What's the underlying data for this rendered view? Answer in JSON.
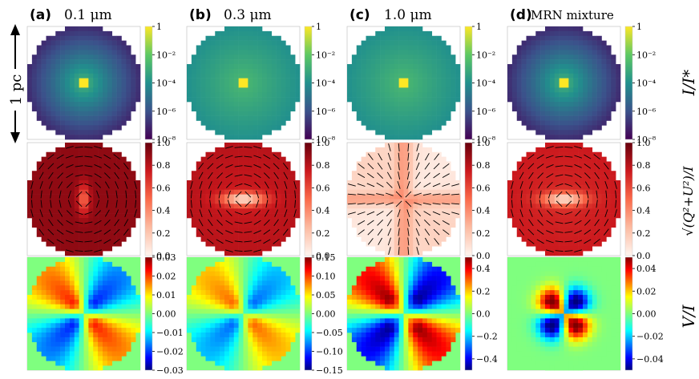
{
  "figure": {
    "scale_label": "1 pc",
    "columns": [
      {
        "label": "(a)",
        "title": "0.1 μm"
      },
      {
        "label": "(b)",
        "title": "0.3 μm"
      },
      {
        "label": "(c)",
        "title": "1.0 μm"
      },
      {
        "label": "(d)",
        "title": "MRN mixture"
      }
    ],
    "row_labels": [
      "I/I*",
      "√(Q²+U²)/I",
      "V/I"
    ]
  },
  "chart_data": [
    {
      "type": "heatmap",
      "row": "intensity",
      "quantity": "I/I*",
      "colormap": "viridis",
      "scale": "log",
      "range": [
        1e-08,
        1
      ],
      "panels": [
        {
          "grain": "0.1 μm",
          "ticks": [
            "1",
            "10⁻²",
            "10⁻⁴",
            "10⁻⁶",
            "10⁻⁸"
          ],
          "center_value": 1,
          "edge_value": 1e-07
        },
        {
          "grain": "0.3 μm",
          "ticks": [
            "1",
            "10⁻²",
            "10⁻⁴",
            "10⁻⁶",
            "10⁻⁸"
          ],
          "center_value": 1,
          "edge_value": 0.0001
        },
        {
          "grain": "1.0 μm",
          "ticks": [
            "1",
            "10⁻²",
            "10⁻⁴",
            "10⁻⁶",
            "10⁻⁸"
          ],
          "center_value": 1,
          "edge_value": 0.0001
        },
        {
          "grain": "MRN mixture",
          "ticks": [
            "1",
            "10⁻²",
            "10⁻⁴",
            "10⁻⁶",
            "10⁻⁸"
          ],
          "center_value": 1,
          "edge_value": 1e-07
        }
      ]
    },
    {
      "type": "heatmap",
      "row": "linear_polarization",
      "quantity": "√(Q²+U²)/I",
      "colormap": "Reds",
      "range": [
        0,
        1
      ],
      "panels": [
        {
          "grain": "0.1 μm",
          "ticks": [
            "1.0",
            "0.8",
            "0.6",
            "0.4",
            "0.2",
            "0.0"
          ],
          "typical_value": 0.9,
          "center_value": 0.5,
          "vectors": "azimuthal"
        },
        {
          "grain": "0.3 μm",
          "ticks": [
            "1.0",
            "0.8",
            "0.6",
            "0.4",
            "0.2",
            "0.0"
          ],
          "typical_value": 0.75,
          "center_value": 0.1,
          "vectors": "azimuthal"
        },
        {
          "grain": "1.0 μm",
          "ticks": [
            "1.0",
            "0.8",
            "0.6",
            "0.4",
            "0.2",
            "0.0"
          ],
          "typical_value": 0.1,
          "center_value": 0.35,
          "vectors": "radial"
        },
        {
          "grain": "MRN mixture",
          "ticks": [
            "1.0",
            "0.8",
            "0.6",
            "0.4",
            "0.2",
            "0.0"
          ],
          "typical_value": 0.7,
          "center_value": 0.1,
          "vectors": "azimuthal"
        }
      ]
    },
    {
      "type": "heatmap",
      "row": "circular_polarization",
      "quantity": "V/I",
      "colormap": "jet",
      "panels": [
        {
          "grain": "0.1 μm",
          "vmin": -0.03,
          "vmax": 0.03,
          "ticks": [
            "0.03",
            "0.02",
            "0.01",
            "0.00",
            "−0.01",
            "−0.02",
            "−0.03"
          ],
          "tick_values": [
            0.03,
            0.02,
            0.01,
            0,
            -0.01,
            -0.02,
            -0.03
          ],
          "amplitude": 0.02,
          "pattern": "quadrupole-wide"
        },
        {
          "grain": "0.3 μm",
          "vmin": -0.15,
          "vmax": 0.15,
          "ticks": [
            "0.15",
            "0.10",
            "0.05",
            "0.00",
            "−0.05",
            "−0.10",
            "−0.15"
          ],
          "tick_values": [
            0.15,
            0.1,
            0.05,
            0,
            -0.05,
            -0.1,
            -0.15
          ],
          "amplitude": 0.08,
          "pattern": "quadrupole-wide"
        },
        {
          "grain": "1.0 μm",
          "vmin": -0.5,
          "vmax": 0.5,
          "ticks": [
            "0.4",
            "0.2",
            "0.0",
            "−0.2",
            "−0.4"
          ],
          "tick_values": [
            0.4,
            0.2,
            0,
            -0.2,
            -0.4
          ],
          "amplitude": 0.45,
          "pattern": "quadrupole-strong"
        },
        {
          "grain": "MRN mixture",
          "vmin": -0.05,
          "vmax": 0.05,
          "ticks": [
            "0.04",
            "0.02",
            "0.00",
            "−0.02",
            "−0.04"
          ],
          "tick_values": [
            0.04,
            0.02,
            0,
            -0.02,
            -0.04
          ],
          "amplitude": 0.045,
          "pattern": "quadrupole-compact"
        }
      ]
    }
  ]
}
